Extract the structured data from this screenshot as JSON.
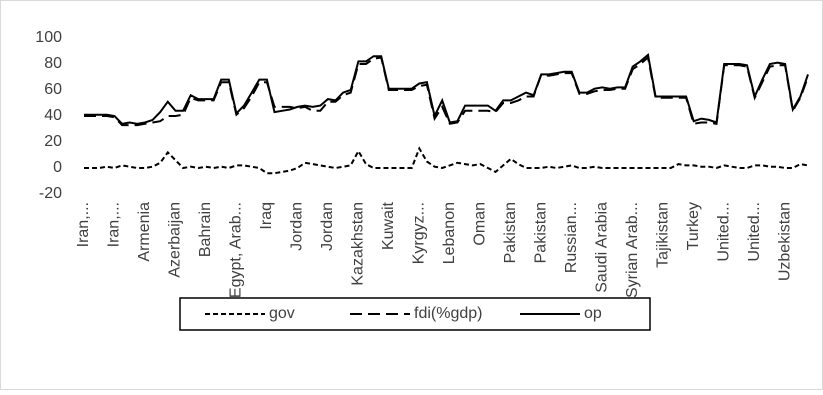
{
  "chart_data": {
    "type": "line",
    "categories": [
      "Iran,...",
      null,
      null,
      null,
      "Iran,...",
      null,
      null,
      null,
      "Armenia",
      null,
      null,
      null,
      "Azerbaijan",
      null,
      null,
      null,
      "Bahrain",
      null,
      null,
      null,
      "Egypt, Arab...",
      null,
      null,
      null,
      "Iraq",
      null,
      null,
      null,
      "Jordan",
      null,
      null,
      null,
      "Jordan",
      null,
      null,
      null,
      "Kazakhstan",
      null,
      null,
      null,
      "Kuwait",
      null,
      null,
      null,
      "Kyrgyz...",
      null,
      null,
      null,
      "Lebanon",
      null,
      null,
      null,
      "Oman",
      null,
      null,
      null,
      "Pakistan",
      null,
      null,
      null,
      "Pakistan",
      null,
      null,
      null,
      "Russian...",
      null,
      null,
      null,
      "Saudi Arabia",
      null,
      null,
      null,
      "Syrian Arab...",
      null,
      null,
      null,
      "Tajikistan",
      null,
      null,
      null,
      "Turkey",
      null,
      null,
      null,
      "United...",
      null,
      null,
      null,
      "United...",
      null,
      null,
      null,
      "Uzbekistan",
      null,
      null,
      null
    ],
    "series": [
      {
        "name": "gov",
        "color": "#000000",
        "dash": "short",
        "values": [
          0,
          0,
          0,
          1,
          0,
          2,
          1,
          0,
          0,
          1,
          4,
          12,
          6,
          0,
          1,
          0,
          1,
          0,
          1,
          0,
          2,
          2,
          1,
          0,
          -4,
          -4,
          -3,
          -2,
          0,
          4,
          3,
          2,
          1,
          0,
          1,
          2,
          13,
          3,
          0,
          0,
          0,
          0,
          0,
          0,
          15,
          5,
          1,
          0,
          2,
          4,
          3,
          2,
          3,
          0,
          -3,
          2,
          7,
          3,
          0,
          0,
          0,
          1,
          0,
          1,
          2,
          0,
          0,
          1,
          0,
          0,
          0,
          0,
          0,
          0,
          0,
          0,
          0,
          0,
          3,
          2,
          2,
          1,
          1,
          0,
          2,
          1,
          0,
          0,
          2,
          2,
          1,
          1,
          0,
          0,
          3,
          2
        ]
      },
      {
        "name": "fdi(%gdp)",
        "color": "#000000",
        "dash": "long",
        "values": [
          40,
          40,
          40,
          40,
          39,
          33,
          33,
          33,
          34,
          35,
          36,
          40,
          40,
          41,
          54,
          52,
          52,
          52,
          66,
          66,
          41,
          46,
          55,
          66,
          66,
          47,
          47,
          47,
          46,
          47,
          44,
          44,
          51,
          51,
          56,
          58,
          80,
          80,
          84,
          85,
          60,
          60,
          60,
          60,
          63,
          64,
          38,
          47,
          34,
          35,
          44,
          44,
          44,
          44,
          43,
          50,
          50,
          52,
          55,
          55,
          72,
          71,
          72,
          73,
          73,
          57,
          57,
          59,
          60,
          60,
          61,
          61,
          76,
          80,
          85,
          54,
          54,
          54,
          54,
          54,
          34,
          35,
          35,
          34,
          79,
          79,
          79,
          78,
          54,
          66,
          78,
          79,
          79,
          44,
          54,
          70
        ]
      },
      {
        "name": "op",
        "color": "#000000",
        "dash": "solid",
        "values": [
          41,
          41,
          41,
          41,
          40,
          34,
          35,
          34,
          35,
          37,
          43,
          51,
          44,
          44,
          56,
          53,
          53,
          53,
          68,
          68,
          42,
          48,
          58,
          68,
          68,
          43,
          44,
          45,
          47,
          48,
          47,
          48,
          53,
          52,
          58,
          60,
          82,
          82,
          86,
          86,
          61,
          61,
          61,
          61,
          65,
          66,
          40,
          52,
          35,
          36,
          48,
          48,
          48,
          48,
          44,
          52,
          52,
          55,
          58,
          56,
          72,
          72,
          73,
          74,
          74,
          58,
          58,
          61,
          62,
          61,
          62,
          62,
          78,
          82,
          87,
          55,
          55,
          55,
          55,
          55,
          36,
          38,
          37,
          35,
          80,
          80,
          80,
          79,
          55,
          68,
          80,
          81,
          80,
          45,
          55,
          72
        ]
      }
    ],
    "ylim": [
      -20,
      100
    ],
    "yticks": [
      -20,
      0,
      20,
      40,
      60,
      80,
      100
    ],
    "grid": false,
    "legend": "bottom"
  }
}
